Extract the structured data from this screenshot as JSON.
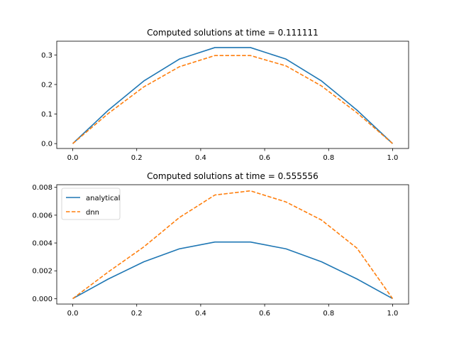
{
  "chart_data": [
    {
      "type": "line",
      "title": "Computed solutions at time = 0.111111",
      "xlabel": "",
      "ylabel": "",
      "xlim": [
        -0.05,
        1.05
      ],
      "ylim": [
        -0.0165,
        0.3465
      ],
      "xticks": [
        0.0,
        0.2,
        0.4,
        0.6,
        0.8,
        1.0
      ],
      "xtick_labels": [
        "0.0",
        "0.2",
        "0.4",
        "0.6",
        "0.8",
        "1.0"
      ],
      "yticks": [
        0.0,
        0.1,
        0.2,
        0.3
      ],
      "ytick_labels": [
        "0.0",
        "0.1",
        "0.2",
        "0.3"
      ],
      "x": [
        0.0,
        0.111111,
        0.222222,
        0.333333,
        0.444444,
        0.555556,
        0.666667,
        0.777778,
        0.888889,
        1.0
      ],
      "series": [
        {
          "name": "analytical",
          "color": "#1f77b4",
          "dash": "solid",
          "values": [
            0.0,
            0.113,
            0.212,
            0.286,
            0.325,
            0.325,
            0.286,
            0.212,
            0.113,
            0.0
          ]
        },
        {
          "name": "dnn",
          "color": "#ff7f0e",
          "dash": "dashed",
          "values": [
            0.0,
            0.102,
            0.192,
            0.26,
            0.298,
            0.298,
            0.263,
            0.195,
            0.104,
            0.0
          ]
        }
      ],
      "legend": null,
      "grid": false
    },
    {
      "type": "line",
      "title": "Computed solutions at time = 0.555556",
      "xlabel": "",
      "ylabel": "",
      "xlim": [
        -0.05,
        1.05
      ],
      "ylim": [
        -0.00039,
        0.00819
      ],
      "xticks": [
        0.0,
        0.2,
        0.4,
        0.6,
        0.8,
        1.0
      ],
      "xtick_labels": [
        "0.0",
        "0.2",
        "0.4",
        "0.6",
        "0.8",
        "1.0"
      ],
      "yticks": [
        0.0,
        0.002,
        0.004,
        0.006,
        0.008
      ],
      "ytick_labels": [
        "0.000",
        "0.002",
        "0.004",
        "0.006",
        "0.008"
      ],
      "x": [
        0.0,
        0.111111,
        0.222222,
        0.333333,
        0.444444,
        0.555556,
        0.666667,
        0.777778,
        0.888889,
        1.0
      ],
      "series": [
        {
          "name": "analytical",
          "color": "#1f77b4",
          "dash": "solid",
          "values": [
            0.0,
            0.00141,
            0.00265,
            0.00358,
            0.00407,
            0.00407,
            0.00358,
            0.00265,
            0.00141,
            0.0
          ]
        },
        {
          "name": "dnn",
          "color": "#ff7f0e",
          "dash": "dashed",
          "values": [
            0.0,
            0.00192,
            0.00372,
            0.00583,
            0.00745,
            0.00775,
            0.00695,
            0.00565,
            0.00362,
            0.0
          ]
        }
      ],
      "legend": "upper-left",
      "grid": false
    }
  ]
}
